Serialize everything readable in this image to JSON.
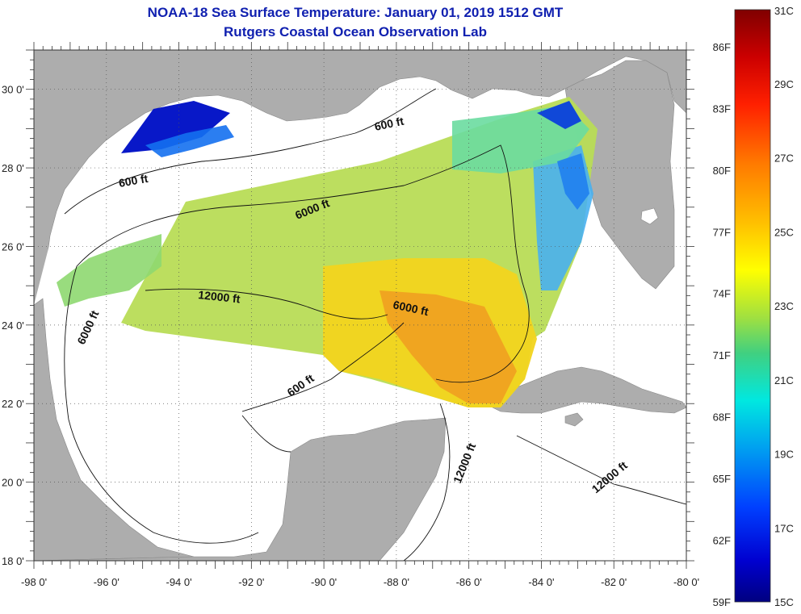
{
  "header": {
    "title": "NOAA-18 Sea Surface Temperature:  January 01, 2019 1512 GMT",
    "subtitle": "Rutgers Coastal Ocean Observation Lab"
  },
  "axes": {
    "longitude_ticks": [
      "-98 0'",
      "-96 0'",
      "-94 0'",
      "-92 0'",
      "-90 0'",
      "-88 0'",
      "-86 0'",
      "-84 0'",
      "-82 0'",
      "-80 0'"
    ],
    "latitude_ticks": [
      "18 0'",
      "20 0'",
      "22 0'",
      "24 0'",
      "26 0'",
      "28 0'",
      "30 0'"
    ],
    "lon_range": [
      -98,
      -80
    ],
    "lat_range": [
      18,
      31
    ]
  },
  "contour_labels": {
    "c600_west": "600 ft",
    "c600_north": "600 ft",
    "c600_south": "600 ft",
    "c6000_north": "6000 ft",
    "c6000_west": "6000 ft",
    "c6000_east": "6000 ft",
    "c12000_center": "12000 ft",
    "c12000_yucatan": "12000 ft",
    "c12000_caribbean": "12000 ft"
  },
  "colorbar": {
    "fahrenheit": [
      "86F",
      "83F",
      "80F",
      "77F",
      "74F",
      "71F",
      "68F",
      "65F",
      "62F",
      "59F"
    ],
    "celsius": [
      "31C",
      "29C",
      "27C",
      "25C",
      "23C",
      "21C",
      "19C",
      "17C",
      "15C"
    ]
  },
  "colors": {
    "land": "#adadad",
    "ocean": "#ffffff",
    "title": "#1020b0"
  }
}
